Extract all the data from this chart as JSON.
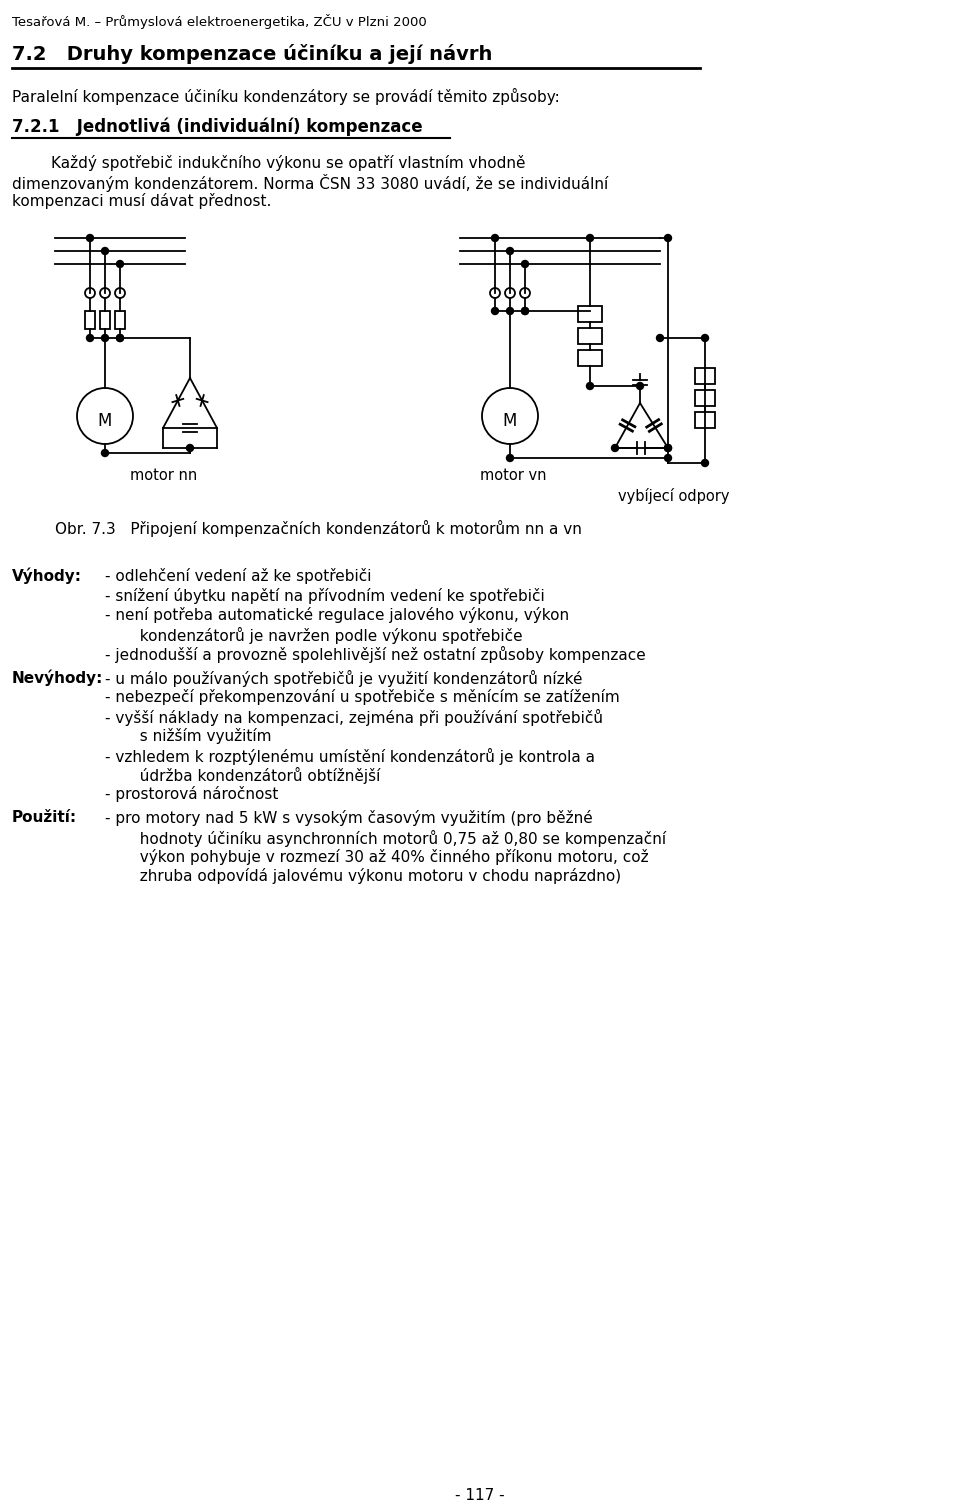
{
  "header": "Tesařová M. – Průmyslová elektroenergetika, ZČU v Plzni 2000",
  "title": "7.2   Druhy kompenzace účiníku a její návrh",
  "para1": "Paralelní kompenzace účiníku kondenzátory se provádí těmito způsoby:",
  "subtitle": "7.2.1   Jednotlivá (individuální) kompenzace",
  "para2_lines": [
    "        Každý spotřebič indukčního výkonu se opatří vlastním vhodně",
    "dimenzovaným kondenzátorem. Norma ČSN 33 3080 uvádí, že se individuální",
    "kompenzaci musí dávat přednost."
  ],
  "caption": "Obr. 7.3   Připojení kompenzačních kondenzátorů k motorům nn a vn",
  "label_nn": "motor nn",
  "label_vn": "motor vn",
  "label_vybijeci": "vybíjecí odpory",
  "vyhody_label": "Výhody:",
  "vyhody_items": [
    [
      "- odlehčení vedení až ke spotřebiči"
    ],
    [
      "- snížení úbytku napětí na přívodním vedení ke spotřebiči"
    ],
    [
      "- není potřeba automatické regulace jalového výkonu, výkon",
      "  kondenzátorů je navržen podle výkonu spotřebiče"
    ],
    [
      "- jednodušší a provozně spolehlivější než ostatní způsoby kompenzace"
    ]
  ],
  "nevyhody_label": "Nevýhody:",
  "nevyhody_items": [
    [
      "- u málo používaných spotřebičů je využití kondenzátorů nízké"
    ],
    [
      "- nebezpečí překompenzování u spotřebiče s měnícím se zatížením"
    ],
    [
      "- vyšší náklady na kompenzaci, zejména při používání spotřebičů",
      "  s nižším využitím"
    ],
    [
      "- vzhledem k rozptýlenému umístění kondenzátorů je kontrola a",
      "  údržba kondenzátorů obtížnější"
    ],
    [
      "- prostorová náročnost"
    ]
  ],
  "pouziti_label": "Použití:",
  "pouziti_items": [
    [
      "- pro motory nad 5 kW s vysokým časovým využitím (pro běžné",
      "  hodnoty účiníku asynchronních motorů 0,75 až 0,80 se kompenzační",
      "  výkon pohybuje v rozmezí 30 až 40% činného příkonu motoru, což",
      "  zhruba odpovídá jalovému výkonu motoru v chodu naprázdno)"
    ]
  ],
  "page_number": "- 117 -",
  "bg_color": "#ffffff",
  "text_color": "#000000"
}
